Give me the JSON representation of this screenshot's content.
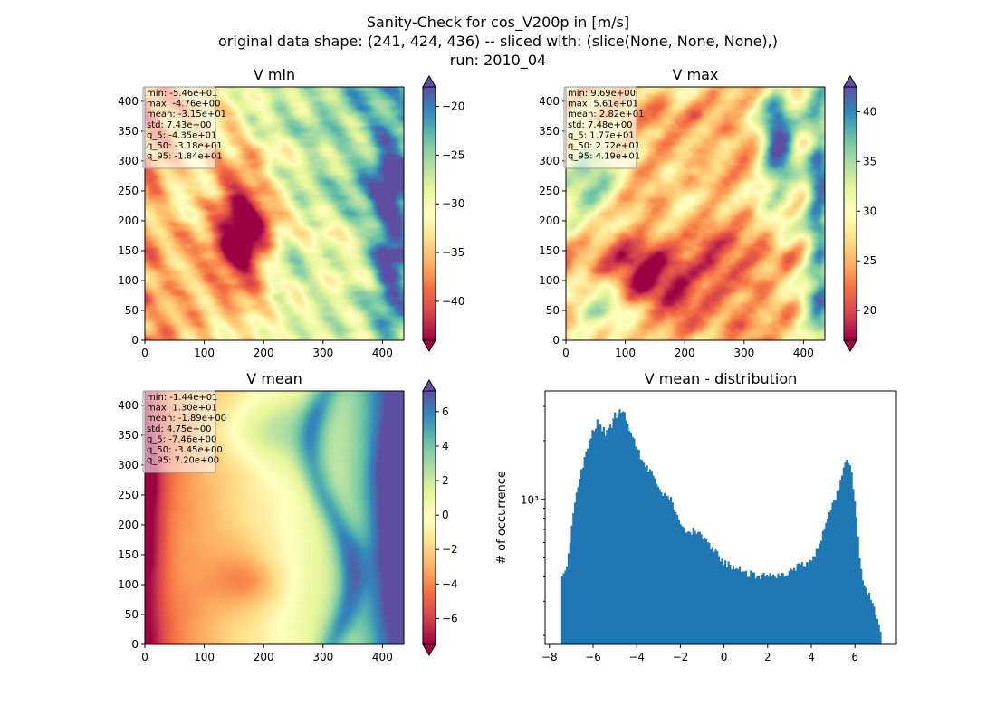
{
  "figure": {
    "title_lines": [
      "Sanity-Check for cos_V200p in [m/s]",
      "original data shape: (241, 424, 436) -- sliced with: (slice(None, None, None),)",
      "run: 2010_04"
    ]
  },
  "colormap": "Spectral",
  "chart_data": [
    {
      "type": "heatmap",
      "title": "V min",
      "xlim": [
        0,
        436
      ],
      "ylim": [
        0,
        424
      ],
      "xticks": [
        "0",
        "100",
        "200",
        "300",
        "400"
      ],
      "yticks": [
        "0",
        "50",
        "100",
        "150",
        "200",
        "250",
        "300",
        "350",
        "400"
      ],
      "colorbar": {
        "range": [
          -44,
          -18
        ],
        "ticks": [
          "−40",
          "−35",
          "−30",
          "−25",
          "−20"
        ],
        "tick_values": [
          -40,
          -35,
          -30,
          -25,
          -20
        ]
      },
      "stats": [
        "min: -5.46e+01",
        "max: -4.76e+00",
        "mean: -3.15e+01",
        "std: 7.43e+00",
        "q_5: -4.35e+01",
        "q_50: -3.18e+01",
        "q_95: -1.84e+01"
      ]
    },
    {
      "type": "heatmap",
      "title": "V max",
      "xlim": [
        0,
        436
      ],
      "ylim": [
        0,
        424
      ],
      "xticks": [
        "0",
        "100",
        "200",
        "300",
        "400"
      ],
      "yticks": [
        "0",
        "50",
        "100",
        "150",
        "200",
        "250",
        "300",
        "350",
        "400"
      ],
      "colorbar": {
        "range": [
          17,
          42.5
        ],
        "ticks": [
          "20",
          "25",
          "30",
          "35",
          "40"
        ],
        "tick_values": [
          20,
          25,
          30,
          35,
          40
        ]
      },
      "stats": [
        "min: 9.69e+00",
        "max: 5.61e+01",
        "mean: 2.82e+01",
        "std: 7.48e+00",
        "q_5: 1.77e+01",
        "q_50: 2.72e+01",
        "q_95: 4.19e+01"
      ]
    },
    {
      "type": "heatmap",
      "title": "V mean",
      "xlim": [
        0,
        436
      ],
      "ylim": [
        0,
        424
      ],
      "xticks": [
        "0",
        "100",
        "200",
        "300",
        "400"
      ],
      "yticks": [
        "0",
        "50",
        "100",
        "150",
        "200",
        "250",
        "300",
        "350",
        "400"
      ],
      "colorbar": {
        "range": [
          -7.5,
          7.2
        ],
        "ticks": [
          "−6",
          "−4",
          "−2",
          "0",
          "2",
          "4",
          "6"
        ],
        "tick_values": [
          -6,
          -4,
          -2,
          0,
          2,
          4,
          6
        ]
      },
      "stats": [
        "min: -1.44e+01",
        "max: 1.30e+01",
        "mean: -1.89e+00",
        "std: 4.75e+00",
        "q_5: -7.46e+00",
        "q_50: -3.45e+00",
        "q_95: 7.20e+00"
      ]
    },
    {
      "type": "bar",
      "title": "V mean - distribution",
      "ylabel": "# of occurrence",
      "xlabel": "",
      "log_y": true,
      "xlim": [
        -8.2,
        7.9
      ],
      "ylim": [
        180,
        3600
      ],
      "xticks": [
        "−8",
        "−6",
        "−4",
        "−2",
        "0",
        "2",
        "4",
        "6"
      ],
      "xtick_values": [
        -8,
        -6,
        -4,
        -2,
        0,
        2,
        4,
        6
      ],
      "yticks": [
        "10³"
      ],
      "ytick_values": [
        1000
      ],
      "bin_range": [
        -7.46,
        7.2
      ],
      "envelope": [
        [
          -7.46,
          420
        ],
        [
          -7.3,
          410
        ],
        [
          -7.15,
          500
        ],
        [
          -7.0,
          700
        ],
        [
          -6.8,
          1000
        ],
        [
          -6.6,
          1300
        ],
        [
          -6.4,
          1600
        ],
        [
          -6.2,
          2000
        ],
        [
          -6.0,
          2300
        ],
        [
          -5.8,
          2500
        ],
        [
          -5.6,
          2350
        ],
        [
          -5.4,
          2150
        ],
        [
          -5.2,
          2350
        ],
        [
          -5.0,
          2700
        ],
        [
          -4.8,
          2800
        ],
        [
          -4.6,
          2750
        ],
        [
          -4.4,
          2400
        ],
        [
          -4.2,
          2050
        ],
        [
          -4.0,
          1850
        ],
        [
          -3.8,
          1600
        ],
        [
          -3.6,
          1470
        ],
        [
          -3.4,
          1400
        ],
        [
          -3.2,
          1270
        ],
        [
          -3.0,
          1170
        ],
        [
          -2.8,
          1050
        ],
        [
          -2.6,
          1050
        ],
        [
          -2.4,
          970
        ],
        [
          -2.2,
          840
        ],
        [
          -2.0,
          740
        ],
        [
          -1.8,
          690
        ],
        [
          -1.6,
          660
        ],
        [
          -1.4,
          690
        ],
        [
          -1.2,
          670
        ],
        [
          -1.0,
          640
        ],
        [
          -0.8,
          610
        ],
        [
          -0.6,
          570
        ],
        [
          -0.4,
          540
        ],
        [
          -0.2,
          500
        ],
        [
          0.0,
          470
        ],
        [
          0.2,
          460
        ],
        [
          0.4,
          450
        ],
        [
          0.6,
          440
        ],
        [
          0.8,
          430
        ],
        [
          1.0,
          420
        ],
        [
          1.2,
          415
        ],
        [
          1.4,
          410
        ],
        [
          1.6,
          405
        ],
        [
          1.8,
          405
        ],
        [
          2.0,
          410
        ],
        [
          2.2,
          415
        ],
        [
          2.4,
          405
        ],
        [
          2.6,
          410
        ],
        [
          2.8,
          415
        ],
        [
          3.0,
          430
        ],
        [
          3.2,
          440
        ],
        [
          3.4,
          450
        ],
        [
          3.6,
          460
        ],
        [
          3.8,
          480
        ],
        [
          4.0,
          500
        ],
        [
          4.2,
          540
        ],
        [
          4.4,
          600
        ],
        [
          4.6,
          700
        ],
        [
          4.8,
          820
        ],
        [
          5.0,
          950
        ],
        [
          5.2,
          1100
        ],
        [
          5.4,
          1300
        ],
        [
          5.6,
          1600
        ],
        [
          5.8,
          1500
        ],
        [
          6.0,
          1000
        ],
        [
          6.2,
          500
        ],
        [
          6.4,
          370
        ],
        [
          6.6,
          330
        ],
        [
          6.8,
          300
        ],
        [
          7.0,
          240
        ],
        [
          7.2,
          210
        ]
      ]
    }
  ]
}
